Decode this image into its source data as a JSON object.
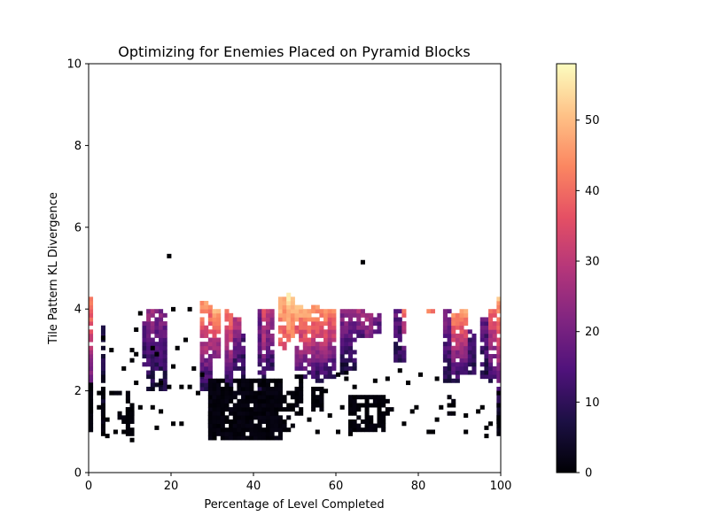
{
  "chart_data": {
    "type": "heatmap",
    "title": "Optimizing for Enemies Placed on Pyramid Blocks",
    "xlabel": "Percentage of Level Completed",
    "ylabel": "Tile Pattern KL Divergence",
    "xlim": [
      0,
      100
    ],
    "ylim": [
      0,
      10
    ],
    "x_ticks": [
      "0",
      "20",
      "40",
      "60",
      "80",
      "100"
    ],
    "y_ticks": [
      "0",
      "2",
      "4",
      "6",
      "8",
      "10"
    ],
    "grid": false,
    "colormap": "magma",
    "colorbar": {
      "min": 0,
      "max": 58,
      "ticks": [
        "0",
        "10",
        "20",
        "30",
        "40",
        "50"
      ]
    },
    "cell_size": {
      "x": 1,
      "y": 0.1
    },
    "columns": [
      {
        "x_start": 0,
        "x_end": 1,
        "y_start": 0.9,
        "y_end": 4.3,
        "v_bottom": 0,
        "v_top": 45
      },
      {
        "x_start": 3,
        "x_end": 4,
        "y_start": 0.9,
        "y_end": 3.6,
        "v_bottom": 0,
        "v_top": 10
      },
      {
        "x_start": 13,
        "x_end": 14,
        "y_start": 2.6,
        "y_end": 3.7,
        "v_bottom": 10,
        "v_top": 18
      },
      {
        "x_start": 14,
        "x_end": 16,
        "y_start": 2.0,
        "y_end": 4.0,
        "v_bottom": 5,
        "v_top": 25
      },
      {
        "x_start": 16,
        "x_end": 19,
        "y_start": 2.0,
        "y_end": 4.0,
        "v_bottom": 6,
        "v_top": 22
      },
      {
        "x_start": 27,
        "x_end": 30,
        "y_start": 2.0,
        "y_end": 4.2,
        "v_bottom": 8,
        "v_top": 48
      },
      {
        "x_start": 30,
        "x_end": 32,
        "y_start": 2.8,
        "y_end": 4.0,
        "v_bottom": 20,
        "v_top": 50
      },
      {
        "x_start": 33,
        "x_end": 35,
        "y_start": 2.0,
        "y_end": 4.0,
        "v_bottom": 6,
        "v_top": 45
      },
      {
        "x_start": 35,
        "x_end": 37,
        "y_start": 2.5,
        "y_end": 3.8,
        "v_bottom": 10,
        "v_top": 30
      },
      {
        "x_start": 37,
        "x_end": 38,
        "y_start": 2.0,
        "y_end": 3.4,
        "v_bottom": 8,
        "v_top": 15
      },
      {
        "x_start": 41,
        "x_end": 42,
        "y_start": 2.0,
        "y_end": 4.0,
        "v_bottom": 8,
        "v_top": 20
      },
      {
        "x_start": 42,
        "x_end": 43,
        "y_start": 2.2,
        "y_end": 4.0,
        "v_bottom": 10,
        "v_top": 40
      },
      {
        "x_start": 43,
        "x_end": 45,
        "y_start": 2.5,
        "y_end": 4.0,
        "v_bottom": 10,
        "v_top": 30
      },
      {
        "x_start": 46,
        "x_end": 48,
        "y_start": 3.0,
        "y_end": 4.3,
        "v_bottom": 35,
        "v_top": 52
      },
      {
        "x_start": 48,
        "x_end": 50,
        "y_start": 3.2,
        "y_end": 4.4,
        "v_bottom": 40,
        "v_top": 57
      },
      {
        "x_start": 50,
        "x_end": 52,
        "y_start": 2.5,
        "y_end": 4.2,
        "v_bottom": 15,
        "v_top": 55
      },
      {
        "x_start": 52,
        "x_end": 54,
        "y_start": 2.3,
        "y_end": 4.0,
        "v_bottom": 10,
        "v_top": 52
      },
      {
        "x_start": 54,
        "x_end": 56,
        "y_start": 2.2,
        "y_end": 4.1,
        "v_bottom": 8,
        "v_top": 50
      },
      {
        "x_start": 56,
        "x_end": 58,
        "y_start": 2.2,
        "y_end": 4.0,
        "v_bottom": 8,
        "v_top": 48
      },
      {
        "x_start": 58,
        "x_end": 60,
        "y_start": 2.3,
        "y_end": 4.0,
        "v_bottom": 8,
        "v_top": 45
      },
      {
        "x_start": 61,
        "x_end": 63,
        "y_start": 2.4,
        "y_end": 4.0,
        "v_bottom": 5,
        "v_top": 25
      },
      {
        "x_start": 63,
        "x_end": 65,
        "y_start": 2.5,
        "y_end": 4.0,
        "v_bottom": 8,
        "v_top": 22
      },
      {
        "x_start": 65,
        "x_end": 67,
        "y_start": 3.3,
        "y_end": 4.0,
        "v_bottom": 15,
        "v_top": 30
      },
      {
        "x_start": 67,
        "x_end": 69,
        "y_start": 3.3,
        "y_end": 3.9,
        "v_bottom": 20,
        "v_top": 30
      },
      {
        "x_start": 69,
        "x_end": 71,
        "y_start": 3.4,
        "y_end": 3.9,
        "v_bottom": 12,
        "v_top": 22
      },
      {
        "x_start": 74,
        "x_end": 76,
        "y_start": 2.7,
        "y_end": 4.0,
        "v_bottom": 8,
        "v_top": 18
      },
      {
        "x_start": 76,
        "x_end": 77,
        "y_start": 2.7,
        "y_end": 4.0,
        "v_bottom": 10,
        "v_top": 40
      },
      {
        "x_start": 82,
        "x_end": 84,
        "y_start": 3.9,
        "y_end": 4.0,
        "v_bottom": 42,
        "v_top": 45
      },
      {
        "x_start": 86,
        "x_end": 88,
        "y_start": 2.2,
        "y_end": 4.0,
        "v_bottom": 8,
        "v_top": 22
      },
      {
        "x_start": 88,
        "x_end": 90,
        "y_start": 2.2,
        "y_end": 3.9,
        "v_bottom": 10,
        "v_top": 45
      },
      {
        "x_start": 90,
        "x_end": 92,
        "y_start": 2.4,
        "y_end": 4.0,
        "v_bottom": 12,
        "v_top": 48
      },
      {
        "x_start": 92,
        "x_end": 94,
        "y_start": 2.4,
        "y_end": 3.5,
        "v_bottom": 8,
        "v_top": 15
      },
      {
        "x_start": 95,
        "x_end": 97,
        "y_start": 2.3,
        "y_end": 3.8,
        "v_bottom": 8,
        "v_top": 18
      },
      {
        "x_start": 97,
        "x_end": 99,
        "y_start": 2.2,
        "y_end": 4.0,
        "v_bottom": 10,
        "v_top": 40
      },
      {
        "x_start": 99,
        "x_end": 100,
        "y_start": 1.0,
        "y_end": 4.3,
        "v_bottom": 0,
        "v_top": 50
      }
    ],
    "dense_low_block": {
      "x_start": 29,
      "x_end": 47,
      "y_start": 0.8,
      "y_end": 2.3,
      "value": 0
    },
    "black_blocks": [
      {
        "x_start": 0,
        "x_end": 1,
        "y_start": 0.9,
        "y_end": 2.2
      },
      {
        "x_start": 3,
        "x_end": 4,
        "y_start": 1.4,
        "y_end": 2.0
      },
      {
        "x_start": 6,
        "x_end": 10,
        "y_start": 1.9,
        "y_end": 2.0
      },
      {
        "x_start": 7,
        "x_end": 11,
        "y_start": 1.2,
        "y_end": 1.6
      },
      {
        "x_start": 9,
        "x_end": 11,
        "y_start": 0.9,
        "y_end": 1.9
      },
      {
        "x_start": 29,
        "x_end": 31,
        "y_start": 1.1,
        "y_end": 1.5
      },
      {
        "x_start": 47,
        "x_end": 50,
        "y_start": 1.0,
        "y_end": 2.0
      },
      {
        "x_start": 50,
        "x_end": 52,
        "y_start": 1.4,
        "y_end": 2.4
      },
      {
        "x_start": 54,
        "x_end": 57,
        "y_start": 1.5,
        "y_end": 2.1
      },
      {
        "x_start": 63,
        "x_end": 66,
        "y_start": 0.9,
        "y_end": 1.9
      },
      {
        "x_start": 66,
        "x_end": 72,
        "y_start": 1.0,
        "y_end": 1.9
      },
      {
        "x_start": 72,
        "x_end": 74,
        "y_start": 1.4,
        "y_end": 1.8
      },
      {
        "x_start": 87,
        "x_end": 89,
        "y_start": 1.4,
        "y_end": 1.9
      },
      {
        "x_start": 99,
        "x_end": 100,
        "y_start": 0.9,
        "y_end": 2.0
      }
    ],
    "scatter_cells": [
      [
        19.5,
        5.3
      ],
      [
        66.5,
        5.15
      ],
      [
        24.5,
        4.0
      ],
      [
        20.5,
        4.0
      ],
      [
        12.5,
        3.9
      ],
      [
        11.5,
        3.5
      ],
      [
        3.5,
        3.3
      ],
      [
        5.5,
        3.0
      ],
      [
        15.5,
        3.05
      ],
      [
        21.5,
        3.05
      ],
      [
        23.5,
        3.25
      ],
      [
        10.5,
        3.0
      ],
      [
        16.5,
        2.9
      ],
      [
        11.5,
        2.9
      ],
      [
        8.5,
        2.55
      ],
      [
        20.5,
        2.6
      ],
      [
        10.5,
        2.75
      ],
      [
        25.5,
        2.55
      ],
      [
        27.5,
        2.4
      ],
      [
        11.5,
        2.2
      ],
      [
        19.5,
        2.1
      ],
      [
        24.5,
        2.1
      ],
      [
        22.5,
        2.1
      ],
      [
        17.5,
        2.2
      ],
      [
        2.5,
        1.95
      ],
      [
        5.5,
        1.95
      ],
      [
        26.5,
        1.95
      ],
      [
        12.5,
        1.6
      ],
      [
        15.5,
        1.6
      ],
      [
        17.5,
        1.5
      ],
      [
        0.5,
        1.5
      ],
      [
        2.5,
        1.6
      ],
      [
        4.5,
        1.3
      ],
      [
        6.5,
        1.0
      ],
      [
        4.5,
        0.9
      ],
      [
        8.5,
        1.0
      ],
      [
        10.5,
        0.8
      ],
      [
        16.5,
        1.1
      ],
      [
        20.5,
        1.2
      ],
      [
        22.5,
        1.2
      ],
      [
        57.5,
        2.0
      ],
      [
        60.5,
        2.4
      ],
      [
        62.5,
        2.3
      ],
      [
        64.5,
        2.1
      ],
      [
        69.5,
        2.25
      ],
      [
        72.5,
        2.3
      ],
      [
        75.5,
        2.5
      ],
      [
        77.5,
        2.2
      ],
      [
        76.5,
        1.2
      ],
      [
        78.5,
        1.5
      ],
      [
        79.5,
        1.6
      ],
      [
        80.5,
        2.4
      ],
      [
        84.5,
        2.3
      ],
      [
        84.5,
        1.3
      ],
      [
        85.5,
        1.6
      ],
      [
        83.5,
        1.0
      ],
      [
        82.5,
        1.0
      ],
      [
        91.5,
        1.4
      ],
      [
        94.5,
        1.5
      ],
      [
        95.5,
        1.6
      ],
      [
        96.5,
        1.1
      ],
      [
        96.5,
        0.9
      ],
      [
        97.5,
        1.2
      ],
      [
        91.5,
        1.0
      ],
      [
        55.5,
        1.0
      ],
      [
        60.5,
        1.0
      ],
      [
        61.5,
        1.6
      ],
      [
        58.5,
        1.4
      ],
      [
        53.5,
        1.3
      ]
    ]
  }
}
